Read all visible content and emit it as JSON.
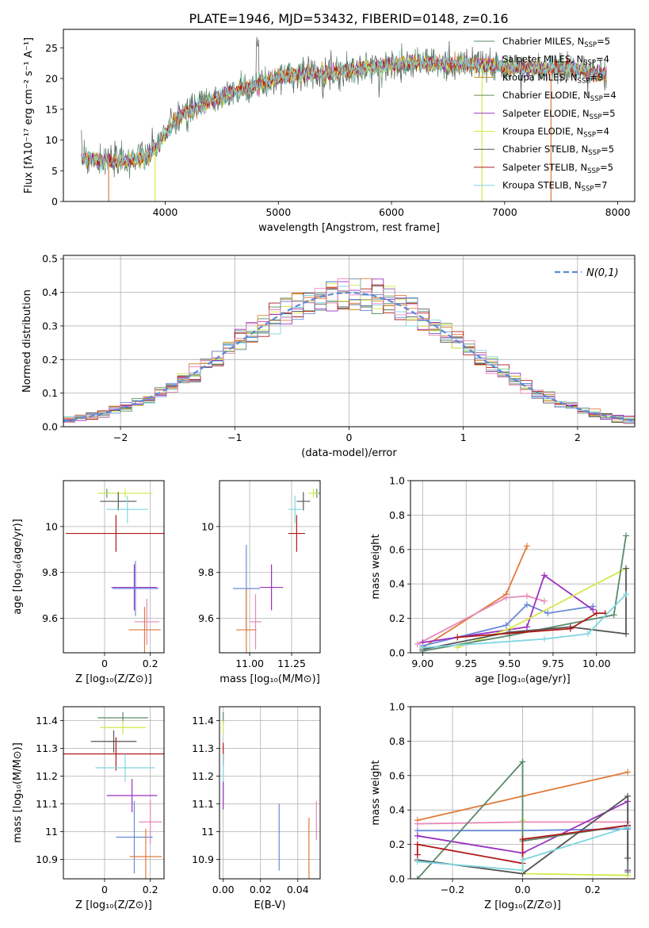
{
  "figure": {
    "title": "PLATE=1946, MJD=53432, FIBERID=0148, z=0.16"
  },
  "colors": {
    "chabrier_miles": "#5a8a6a",
    "salpeter_miles": "#e07b39",
    "kroupa_miles": "#e07b39",
    "chabrier_elodie": "#6b8e5a",
    "salpeter_elodie": "#9b30c0",
    "kroupa_elodie": "#d4e84a",
    "chabrier_stelib": "#555555",
    "salpeter_stelib": "#b01818",
    "kroupa_stelib": "#7fd6e0",
    "blue": "#6a8ad8",
    "pink": "#e888b8",
    "normal": "#5b8ad6"
  },
  "chart_data": [
    {
      "id": "spectrum",
      "type": "line",
      "xlabel": "wavelength [Angstrom, rest frame]",
      "ylabel": "Flux [fλ10⁻¹⁷ erg cm⁻² s⁻¹ A⁻¹]",
      "xlim": [
        3100,
        8150
      ],
      "ylim": [
        0,
        28
      ],
      "xticks": [
        4000,
        5000,
        6000,
        7000,
        8000
      ],
      "yticks": [
        0,
        5,
        10,
        15,
        20,
        25
      ],
      "grid": false,
      "legend": "top-right",
      "series": [
        {
          "name": "Chabrier MILES, N_SSP=5",
          "color": "#5a8a6a"
        },
        {
          "name": "Salpeter MILES, N_SSP=4",
          "color": "#e07b39"
        },
        {
          "name": "Kroupa MILES, N_SSP=3",
          "color": "#c9902a"
        },
        {
          "name": "Chabrier ELODIE, N_SSP=4",
          "color": "#6b8e5a"
        },
        {
          "name": "Salpeter ELODIE, N_SSP=5",
          "color": "#9b30c0"
        },
        {
          "name": "Kroupa ELODIE, N_SSP=4",
          "color": "#d4e84a"
        },
        {
          "name": "Chabrier STELIB, N_SSP=5",
          "color": "#555555"
        },
        {
          "name": "Salpeter STELIB, N_SSP=5",
          "color": "#b01818"
        },
        {
          "name": "Kroupa STELIB, N_SSP=7",
          "color": "#7fd6e0"
        }
      ],
      "continuum": {
        "x": [
          3250,
          3400,
          3550,
          3700,
          3850,
          3950,
          4000,
          4100,
          4300,
          4500,
          4700,
          4900,
          5100,
          5300,
          5500,
          5700,
          5900,
          6100,
          6300,
          6500,
          6700,
          6900,
          7100,
          7300,
          7500,
          7700,
          7900
        ],
        "y": [
          7,
          6.8,
          6.4,
          6.8,
          7.3,
          9.5,
          11,
          13.5,
          15.5,
          17,
          18.5,
          19.5,
          20.5,
          20.8,
          21,
          21.5,
          22,
          22.5,
          22.5,
          22.3,
          22.5,
          22,
          21.8,
          21.5,
          21.8,
          21.3,
          20.5
        ]
      }
    },
    {
      "id": "residuals",
      "type": "step",
      "xlabel": "(data-model)/error",
      "ylabel": "Normed distribution",
      "xlim": [
        -2.5,
        2.5
      ],
      "ylim": [
        0,
        0.51
      ],
      "xticks": [
        -2,
        -1,
        0,
        1,
        2
      ],
      "xticklabels": [
        "−2",
        "−1",
        "0",
        "1",
        "2"
      ],
      "yticks": [
        0.0,
        0.1,
        0.2,
        0.3,
        0.4,
        0.5
      ],
      "grid": true,
      "legend": "top-right",
      "legend_label": "N(0,1)",
      "bin_width": 0.1
    },
    {
      "id": "age_vs_Z",
      "type": "errorbar",
      "xlabel": "Z [log₁₀(Z/Z⊙)]",
      "ylabel": "age  [log₁₀(age/yr)]",
      "xlim": [
        -0.18,
        0.26
      ],
      "ylim": [
        9.45,
        10.2
      ],
      "xticks": [
        0.0,
        0.2
      ],
      "yticks": [
        9.6,
        9.8,
        10.0
      ],
      "grid": true,
      "points": [
        {
          "x": 0.01,
          "y": 10.145,
          "xerr": 0.03,
          "yerr": 0.02,
          "color": "#5a8a6a"
        },
        {
          "x": 0.09,
          "y": 10.145,
          "xerr": 0.12,
          "yerr": 0.02,
          "color": "#d4e84a"
        },
        {
          "x": 0.06,
          "y": 10.11,
          "xerr": 0.08,
          "yerr": 0.04,
          "color": "#555555"
        },
        {
          "x": 0.1,
          "y": 10.075,
          "xerr": 0.09,
          "yerr": 0.06,
          "color": "#7fd6e0"
        },
        {
          "x": 0.05,
          "y": 9.97,
          "xerr": 0.22,
          "yerr": 0.08,
          "color": "#b01818"
        },
        {
          "x": 0.13,
          "y": 9.735,
          "xerr": 0.1,
          "yerr": 0.1,
          "color": "#9b30c0"
        },
        {
          "x": 0.135,
          "y": 9.73,
          "xerr": 0.1,
          "yerr": 0.12,
          "color": "#6a8ad8"
        },
        {
          "x": 0.185,
          "y": 9.585,
          "xerr": 0.055,
          "yerr": 0.1,
          "color": "#e888b8"
        },
        {
          "x": 0.175,
          "y": 9.55,
          "xerr": 0.07,
          "yerr": 0.1,
          "color": "#e07b39"
        }
      ]
    },
    {
      "id": "age_vs_mass",
      "type": "errorbar",
      "xlabel": "mass [log₁₀(M/M⊙)]",
      "ylabel": "",
      "xlim": [
        10.82,
        11.42
      ],
      "ylim": [
        9.45,
        10.2
      ],
      "xticks": [
        11.0,
        11.25
      ],
      "xticklabels": [
        "11.00",
        "11.25"
      ],
      "yticks": [
        9.6,
        9.8,
        10.0
      ],
      "grid": true,
      "points": [
        {
          "x": 11.4,
          "y": 10.145,
          "xerr": 0.02,
          "yerr": 0.02,
          "color": "#5a8a6a"
        },
        {
          "x": 11.38,
          "y": 10.145,
          "xerr": 0.03,
          "yerr": 0.02,
          "color": "#d4e84a"
        },
        {
          "x": 11.32,
          "y": 10.11,
          "xerr": 0.04,
          "yerr": 0.04,
          "color": "#555555"
        },
        {
          "x": 11.27,
          "y": 10.075,
          "xerr": 0.04,
          "yerr": 0.06,
          "color": "#7fd6e0"
        },
        {
          "x": 11.28,
          "y": 9.97,
          "xerr": 0.05,
          "yerr": 0.08,
          "color": "#b01818"
        },
        {
          "x": 11.13,
          "y": 9.735,
          "xerr": 0.07,
          "yerr": 0.1,
          "color": "#9b30c0"
        },
        {
          "x": 10.98,
          "y": 9.73,
          "xerr": 0.08,
          "yerr": 0.19,
          "color": "#6a8ad8"
        },
        {
          "x": 11.035,
          "y": 9.585,
          "xerr": 0.035,
          "yerr": 0.12,
          "color": "#e888b8"
        },
        {
          "x": 10.98,
          "y": 9.55,
          "xerr": 0.06,
          "yerr": 0.18,
          "color": "#e07b39"
        }
      ]
    },
    {
      "id": "mw_vs_age",
      "type": "line",
      "xlabel": "age  [log₁₀(age/yr)]",
      "ylabel": "mass weight",
      "xlim": [
        8.93,
        10.22
      ],
      "ylim": [
        0,
        1.0
      ],
      "xticks": [
        9.0,
        9.25,
        9.5,
        9.75,
        10.0
      ],
      "xticklabels": [
        "9.00",
        "9.25",
        "9.50",
        "9.75",
        "10.00"
      ],
      "yticks": [
        0.0,
        0.2,
        0.4,
        0.6,
        0.8,
        1.0
      ],
      "grid": true,
      "series": [
        {
          "color": "#e07b39",
          "x": [
            9.0,
            9.48,
            9.6
          ],
          "y": [
            0.03,
            0.34,
            0.62
          ]
        },
        {
          "color": "#e888b8",
          "x": [
            8.97,
            9.48,
            9.6,
            9.7
          ],
          "y": [
            0.05,
            0.32,
            0.33,
            0.3
          ]
        },
        {
          "color": "#6a8ad8",
          "x": [
            9.0,
            9.48,
            9.6,
            9.72,
            9.98
          ],
          "y": [
            0.04,
            0.16,
            0.28,
            0.23,
            0.27
          ]
        },
        {
          "color": "#9b30c0",
          "x": [
            9.0,
            9.6,
            9.7,
            9.98
          ],
          "y": [
            0.06,
            0.15,
            0.45,
            0.25
          ]
        },
        {
          "color": "#d4e84a",
          "x": [
            9.2,
            9.5,
            10.17
          ],
          "y": [
            0.03,
            0.14,
            0.49
          ]
        },
        {
          "color": "#5a8a6a",
          "x": [
            9.0,
            9.5,
            10.1,
            10.17
          ],
          "y": [
            0.01,
            0.1,
            0.22,
            0.68
          ]
        },
        {
          "color": "#555555",
          "x": [
            9.0,
            9.5,
            9.85,
            10.17,
            10.17
          ],
          "y": [
            0.02,
            0.12,
            0.15,
            0.11,
            0.49
          ]
        },
        {
          "color": "#b01818",
          "x": [
            9.2,
            9.85,
            10.0,
            10.05
          ],
          "y": [
            0.09,
            0.14,
            0.23,
            0.23
          ]
        },
        {
          "color": "#7fd6e0",
          "x": [
            9.0,
            9.7,
            9.95,
            10.17
          ],
          "y": [
            0.03,
            0.08,
            0.11,
            0.34
          ]
        }
      ]
    },
    {
      "id": "mass_vs_Z",
      "type": "errorbar",
      "xlabel": "Z [log₁₀(Z/Z⊙)]",
      "ylabel": "mass [log₁₀(M/M⊙)]",
      "xlim": [
        -0.18,
        0.26
      ],
      "ylim": [
        10.83,
        11.45
      ],
      "xticks": [
        0.0,
        0.2
      ],
      "yticks": [
        10.9,
        11.0,
        11.1,
        11.2,
        11.3,
        11.4
      ],
      "grid": true,
      "points": [
        {
          "x": 0.08,
          "y": 11.41,
          "xerr": 0.11,
          "yerr": 0.02,
          "color": "#5a8a6a"
        },
        {
          "x": 0.08,
          "y": 11.375,
          "xerr": 0.1,
          "yerr": 0.025,
          "color": "#d4e84a"
        },
        {
          "x": 0.04,
          "y": 11.325,
          "xerr": 0.1,
          "yerr": 0.04,
          "color": "#555555"
        },
        {
          "x": 0.05,
          "y": 11.28,
          "xerr": 0.23,
          "yerr": 0.06,
          "color": "#b01818"
        },
        {
          "x": 0.09,
          "y": 11.23,
          "xerr": 0.13,
          "yerr": 0.05,
          "color": "#7fd6e0"
        },
        {
          "x": 0.12,
          "y": 11.13,
          "xerr": 0.11,
          "yerr": 0.06,
          "color": "#9b30c0"
        },
        {
          "x": 0.2,
          "y": 11.035,
          "xerr": 0.05,
          "yerr": 0.08,
          "color": "#e888b8"
        },
        {
          "x": 0.13,
          "y": 10.98,
          "xerr": 0.08,
          "yerr": 0.13,
          "color": "#6a8ad8"
        },
        {
          "x": 0.18,
          "y": 10.91,
          "xerr": 0.07,
          "yerr": 0.1,
          "color": "#e07b39"
        }
      ]
    },
    {
      "id": "mass_vs_ebv",
      "type": "errorbar",
      "xlabel": "E(B-V)",
      "ylabel": "",
      "xlim": [
        -0.002,
        0.052
      ],
      "ylim": [
        10.83,
        11.45
      ],
      "xticks": [
        0.0,
        0.02,
        0.04
      ],
      "xticklabels": [
        "0.00",
        "0.02",
        "0.04"
      ],
      "yticks": [
        10.9,
        11.0,
        11.1,
        11.2,
        11.3,
        11.4
      ],
      "grid": true,
      "points": [
        {
          "x": 0.0,
          "y": 11.41,
          "xerr": 0.0,
          "yerr": 0.02,
          "color": "#5a8a6a"
        },
        {
          "x": 0.0,
          "y": 11.375,
          "xerr": 0.0,
          "yerr": 0.025,
          "color": "#d4e84a"
        },
        {
          "x": 0.0,
          "y": 11.28,
          "xerr": 0.0,
          "yerr": 0.04,
          "color": "#b01818"
        },
        {
          "x": 0.0,
          "y": 11.2,
          "xerr": 0.0,
          "yerr": 0.08,
          "color": "#7fd6e0"
        },
        {
          "x": 0.0,
          "y": 11.13,
          "xerr": 0.0,
          "yerr": 0.05,
          "color": "#9b30c0"
        },
        {
          "x": 0.03,
          "y": 10.98,
          "xerr": 0.0,
          "yerr": 0.12,
          "color": "#6a8ad8"
        },
        {
          "x": 0.05,
          "y": 11.04,
          "xerr": 0.0,
          "yerr": 0.07,
          "color": "#e888b8"
        },
        {
          "x": 0.046,
          "y": 10.94,
          "xerr": 0.0,
          "yerr": 0.11,
          "color": "#e07b39"
        }
      ]
    },
    {
      "id": "mw_vs_Z",
      "type": "line",
      "xlabel": "Z [log₁₀(Z/Z⊙)]",
      "ylabel": "mass weight",
      "xlim": [
        -0.32,
        0.32
      ],
      "ylim": [
        0,
        1.0
      ],
      "xticks": [
        -0.2,
        0.0,
        0.2
      ],
      "xticklabels": [
        "−0.2",
        "0.0",
        "0.2"
      ],
      "yticks": [
        0.0,
        0.2,
        0.4,
        0.6,
        0.8,
        1.0
      ],
      "grid": true,
      "series": [
        {
          "color": "#e07b39",
          "x": [
            -0.3,
            0.0,
            0.3
          ],
          "y": [
            0.34,
            0.48,
            0.62
          ]
        },
        {
          "color": "#e888b8",
          "x": [
            -0.3,
            0.0,
            0.3,
            0.3
          ],
          "y": [
            0.32,
            0.33,
            0.33,
            0.3
          ]
        },
        {
          "color": "#6a8ad8",
          "x": [
            -0.3,
            0.0,
            0.3,
            0.3
          ],
          "y": [
            0.28,
            0.28,
            0.29,
            0.29
          ]
        },
        {
          "color": "#9b30c0",
          "x": [
            -0.3,
            0.0,
            0.3,
            0.3
          ],
          "y": [
            0.25,
            0.15,
            0.45,
            0.05
          ]
        },
        {
          "color": "#d4e84a",
          "x": [
            0.0,
            0.0,
            0.3
          ],
          "y": [
            0.34,
            0.03,
            0.02
          ]
        },
        {
          "color": "#5a8a6a",
          "x": [
            -0.3,
            0.0,
            0.0,
            0.3,
            0.3
          ],
          "y": [
            0.0,
            0.68,
            0.22,
            0.31,
            0.04
          ]
        },
        {
          "color": "#555555",
          "x": [
            -0.3,
            0.0,
            0.3,
            0.3
          ],
          "y": [
            0.11,
            0.03,
            0.48,
            0.12
          ]
        },
        {
          "color": "#b01818",
          "x": [
            -0.3,
            -0.3,
            0.0,
            0.0,
            0.3
          ],
          "y": [
            0.14,
            0.2,
            0.09,
            0.23,
            0.31
          ]
        },
        {
          "color": "#7fd6e0",
          "x": [
            -0.3,
            0.0,
            0.0,
            0.3
          ],
          "y": [
            0.1,
            0.05,
            0.11,
            0.3
          ]
        }
      ]
    }
  ]
}
